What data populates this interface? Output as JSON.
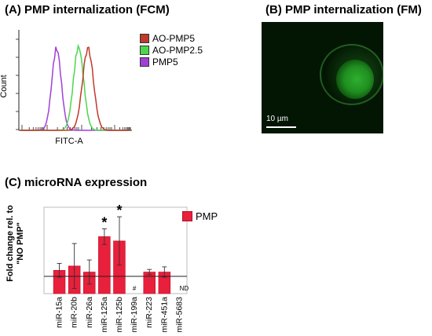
{
  "panel_a": {
    "title": "(A) PMP internalization (FCM)",
    "xlabel": "FITC-A",
    "ylabel": "Count",
    "legend": [
      {
        "label": "AO-PMP5",
        "color": "#c0392b"
      },
      {
        "label": "AO-PMP2.5",
        "color": "#4cd64c"
      },
      {
        "label": "PMP5",
        "color": "#a040d8"
      }
    ]
  },
  "panel_b": {
    "title": "(B) PMP internalization (FM)",
    "scale_label": "10 µm"
  },
  "panel_c": {
    "title": "(C) microRNA expression"
  },
  "chart_data": [
    {
      "type": "line",
      "title": "(A) PMP internalization (FCM)",
      "xlabel": "FITC-A",
      "ylabel": "Count",
      "series": [
        {
          "name": "AO-PMP5",
          "color": "#c0392b"
        },
        {
          "name": "AO-PMP2.5",
          "color": "#4cd64c"
        },
        {
          "name": "PMP5",
          "color": "#a040d8"
        }
      ],
      "legend_position": "right"
    },
    {
      "type": "bar",
      "title": "(C) microRNA expression",
      "ylabel": "Fold change rel. to \"NO PMP\"",
      "categories": [
        "miR-15a",
        "miR-20b",
        "miR-26a",
        "miR-125a",
        "miR-125b",
        "miR-199a",
        "miR-223",
        "miR-451a",
        "miR-5683"
      ],
      "series": [
        {
          "name": "PMP",
          "color": "#e8203c",
          "values": [
            1.35,
            1.6,
            1.25,
            3.3,
            3.05,
            null,
            1.25,
            1.25,
            null
          ],
          "errors": [
            0.4,
            1.3,
            0.7,
            0.45,
            1.4,
            null,
            0.15,
            0.3,
            null
          ]
        }
      ],
      "reference_line": 1.0,
      "ylim": [
        0,
        5
      ],
      "significance": [
        "",
        "",
        "",
        "*",
        "*",
        "",
        "",
        "",
        ""
      ],
      "bar_annotations": [
        "",
        "",
        "",
        "",
        "",
        "#",
        "",
        "",
        "ND"
      ],
      "legend_position": "top-right"
    }
  ]
}
